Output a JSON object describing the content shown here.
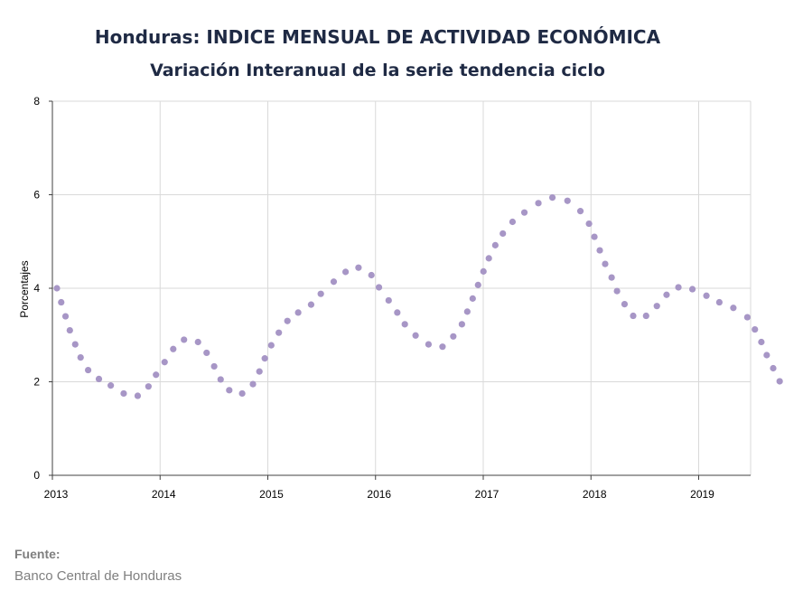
{
  "title": "Honduras: INDICE MENSUAL DE ACTIVIDAD ECONÓMICA",
  "subtitle": "Variación Interanual de la serie tendencia ciclo",
  "footer": {
    "label": "Fuente:",
    "source": "Banco Central de Honduras"
  },
  "colors": {
    "marker": "#a796c6",
    "grid": "#d9d9d9",
    "axis": "#404040",
    "title": "#1f2a44"
  },
  "chart_data": {
    "type": "scatter",
    "ylabel": "Porcentajes",
    "xlabel": "",
    "xlim": [
      2013.0,
      2019.5
    ],
    "ylim": [
      0,
      8
    ],
    "yticks": [
      0,
      2,
      4,
      6,
      8
    ],
    "xticks": [
      {
        "value": 2013,
        "label": "2013"
      },
      {
        "value": 2014,
        "label": "2014"
      },
      {
        "value": 2015,
        "label": "2015"
      },
      {
        "value": 2016,
        "label": "2016"
      },
      {
        "value": 2017,
        "label": "2017"
      },
      {
        "value": 2018,
        "label": "2018"
      },
      {
        "value": 2019,
        "label": "2019"
      }
    ],
    "grid": true,
    "series": [
      {
        "points": [
          {
            "x": 2013.0,
            "y": 4.0
          },
          {
            "x": 2013.04,
            "y": 3.7
          },
          {
            "x": 2013.08,
            "y": 3.4
          },
          {
            "x": 2013.12,
            "y": 3.1
          },
          {
            "x": 2013.17,
            "y": 2.8
          },
          {
            "x": 2013.22,
            "y": 2.52
          },
          {
            "x": 2013.29,
            "y": 2.25
          },
          {
            "x": 2013.39,
            "y": 2.06
          },
          {
            "x": 2013.5,
            "y": 1.92
          },
          {
            "x": 2013.62,
            "y": 1.75
          },
          {
            "x": 2013.75,
            "y": 1.7
          },
          {
            "x": 2013.85,
            "y": 1.9
          },
          {
            "x": 2013.92,
            "y": 2.15
          },
          {
            "x": 2014.0,
            "y": 2.42
          },
          {
            "x": 2014.08,
            "y": 2.7
          },
          {
            "x": 2014.18,
            "y": 2.9
          },
          {
            "x": 2014.31,
            "y": 2.85
          },
          {
            "x": 2014.39,
            "y": 2.62
          },
          {
            "x": 2014.46,
            "y": 2.33
          },
          {
            "x": 2014.52,
            "y": 2.05
          },
          {
            "x": 2014.6,
            "y": 1.82
          },
          {
            "x": 2014.72,
            "y": 1.75
          },
          {
            "x": 2014.82,
            "y": 1.95
          },
          {
            "x": 2014.88,
            "y": 2.22
          },
          {
            "x": 2014.93,
            "y": 2.5
          },
          {
            "x": 2014.99,
            "y": 2.78
          },
          {
            "x": 2015.06,
            "y": 3.05
          },
          {
            "x": 2015.14,
            "y": 3.3
          },
          {
            "x": 2015.24,
            "y": 3.48
          },
          {
            "x": 2015.36,
            "y": 3.65
          },
          {
            "x": 2015.45,
            "y": 3.88
          },
          {
            "x": 2015.57,
            "y": 4.14
          },
          {
            "x": 2015.68,
            "y": 4.35
          },
          {
            "x": 2015.8,
            "y": 4.44
          },
          {
            "x": 2015.92,
            "y": 4.28
          },
          {
            "x": 2015.99,
            "y": 4.02
          },
          {
            "x": 2016.08,
            "y": 3.74
          },
          {
            "x": 2016.16,
            "y": 3.48
          },
          {
            "x": 2016.23,
            "y": 3.23
          },
          {
            "x": 2016.33,
            "y": 2.99
          },
          {
            "x": 2016.45,
            "y": 2.8
          },
          {
            "x": 2016.58,
            "y": 2.75
          },
          {
            "x": 2016.68,
            "y": 2.97
          },
          {
            "x": 2016.76,
            "y": 3.23
          },
          {
            "x": 2016.81,
            "y": 3.5
          },
          {
            "x": 2016.86,
            "y": 3.78
          },
          {
            "x": 2016.91,
            "y": 4.07
          },
          {
            "x": 2016.96,
            "y": 4.36
          },
          {
            "x": 2017.01,
            "y": 4.64
          },
          {
            "x": 2017.07,
            "y": 4.92
          },
          {
            "x": 2017.14,
            "y": 5.17
          },
          {
            "x": 2017.23,
            "y": 5.42
          },
          {
            "x": 2017.34,
            "y": 5.62
          },
          {
            "x": 2017.47,
            "y": 5.82
          },
          {
            "x": 2017.6,
            "y": 5.94
          },
          {
            "x": 2017.74,
            "y": 5.87
          },
          {
            "x": 2017.86,
            "y": 5.65
          },
          {
            "x": 2017.94,
            "y": 5.38
          },
          {
            "x": 2017.99,
            "y": 5.1
          },
          {
            "x": 2018.04,
            "y": 4.81
          },
          {
            "x": 2018.09,
            "y": 4.52
          },
          {
            "x": 2018.15,
            "y": 4.23
          },
          {
            "x": 2018.2,
            "y": 3.94
          },
          {
            "x": 2018.27,
            "y": 3.66
          },
          {
            "x": 2018.35,
            "y": 3.41
          },
          {
            "x": 2018.47,
            "y": 3.41
          },
          {
            "x": 2018.57,
            "y": 3.62
          },
          {
            "x": 2018.66,
            "y": 3.86
          },
          {
            "x": 2018.77,
            "y": 4.02
          },
          {
            "x": 2018.9,
            "y": 3.98
          },
          {
            "x": 2019.03,
            "y": 3.84
          },
          {
            "x": 2019.15,
            "y": 3.7
          },
          {
            "x": 2019.28,
            "y": 3.58
          },
          {
            "x": 2019.41,
            "y": 3.38
          },
          {
            "x": 2019.48,
            "y": 3.12
          },
          {
            "x": 2019.54,
            "y": 2.85
          },
          {
            "x": 2019.59,
            "y": 2.57
          },
          {
            "x": 2019.65,
            "y": 2.29
          },
          {
            "x": 2019.71,
            "y": 2.01
          }
        ]
      }
    ]
  }
}
